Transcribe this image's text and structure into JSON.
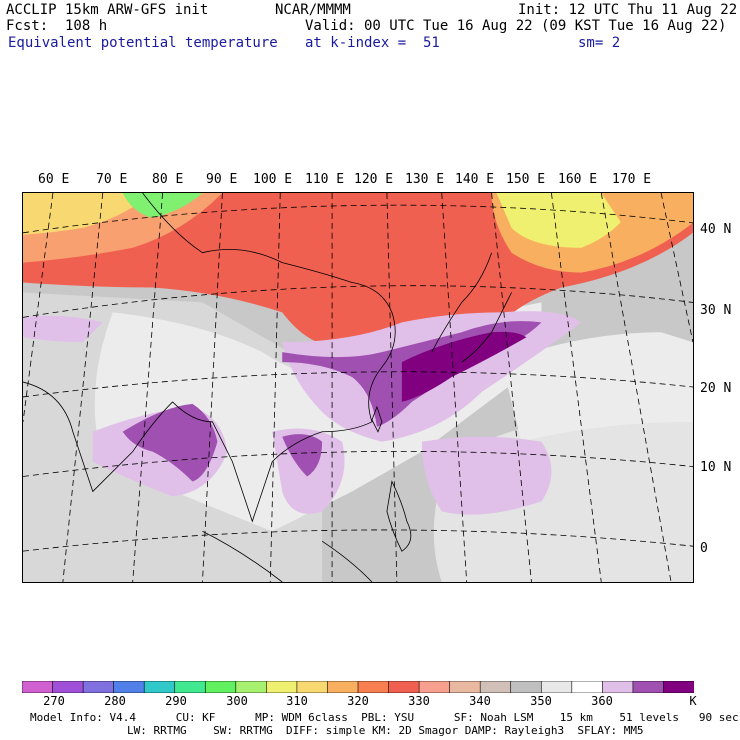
{
  "header": {
    "model": "ACCLIP 15km ARW-GFS init",
    "fcst": "Fcst:  108 h",
    "field": "Equivalent potential temperature",
    "org": "NCAR/MMMM",
    "valid": "Valid: 00 UTC Tue 16 Aug 22 (09 KST Tue 16 Aug 22)",
    "level": "at k-index =  51",
    "init": "Init: 12 UTC Thu 11 Aug 22",
    "smooth": "sm= 2"
  },
  "map": {
    "lon_labels": [
      "60 E",
      "70 E",
      "80 E",
      "90 E",
      "100 E",
      "110 E",
      "120 E",
      "130 E",
      "140 E",
      "150 E",
      "160 E",
      "170 E"
    ],
    "lat_labels": [
      "40 N",
      "30 N",
      "20 N",
      "10 N",
      "0"
    ]
  },
  "colorbar": {
    "ticks": [
      "270",
      "280",
      "290",
      "300",
      "310",
      "320",
      "330",
      "340",
      "350",
      "360"
    ],
    "unit": "K",
    "colors": [
      "#d060d0",
      "#a050d8",
      "#8070e0",
      "#5080e8",
      "#30c8c8",
      "#40e890",
      "#60f060",
      "#a8f070",
      "#f0f070",
      "#f8d870",
      "#f8b060",
      "#f88050",
      "#f06050",
      "#f8a090",
      "#e8b8a0",
      "#d0c0b8",
      "#c0c0c0",
      "#e8e8e8",
      "#ffffff",
      "#e0c0e8",
      "#a050b0",
      "#800080"
    ]
  },
  "footer": {
    "line1": "Model Info: V4.4      CU: KF      MP: WDM 6class  PBL: YSU      SF: Noah LSM    15 km    51 levels   90 sec",
    "line2": "LW: RRTMG    SW: RRTMG  DIFF: simple KM: 2D Smagor DAMP: Rayleigh3  SFLAY: MM5"
  }
}
